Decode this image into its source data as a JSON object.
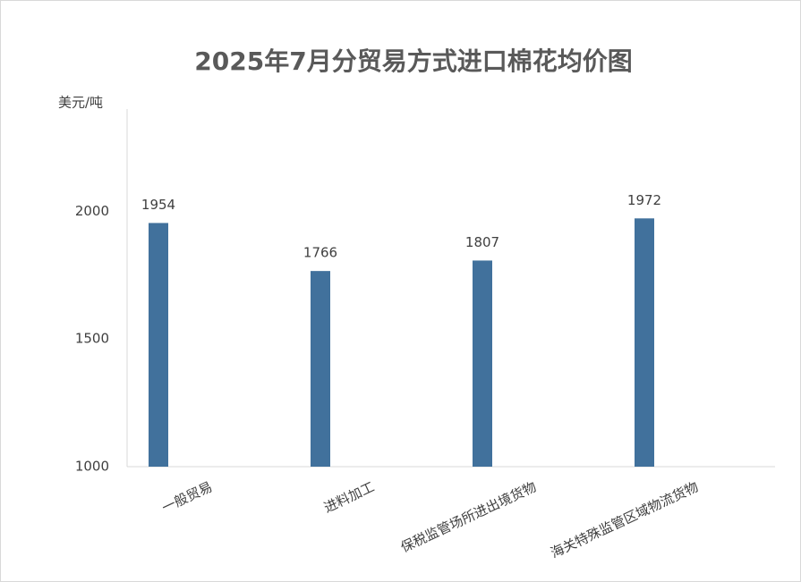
{
  "chart_data": {
    "type": "bar",
    "title": "2025年7月分贸易方式进口棉花均价图",
    "y_label": "美元/吨",
    "categories": [
      "一般贸易",
      "进料加工",
      "保税监管场所进出境货物",
      "海关特殊监管区域物流货物"
    ],
    "values": [
      1954,
      1766,
      1807,
      1972
    ],
    "color": "#41719c",
    "ylim": [
      1000,
      2400
    ],
    "yticks": [
      1000,
      1500,
      2000
    ],
    "grid": false
  }
}
